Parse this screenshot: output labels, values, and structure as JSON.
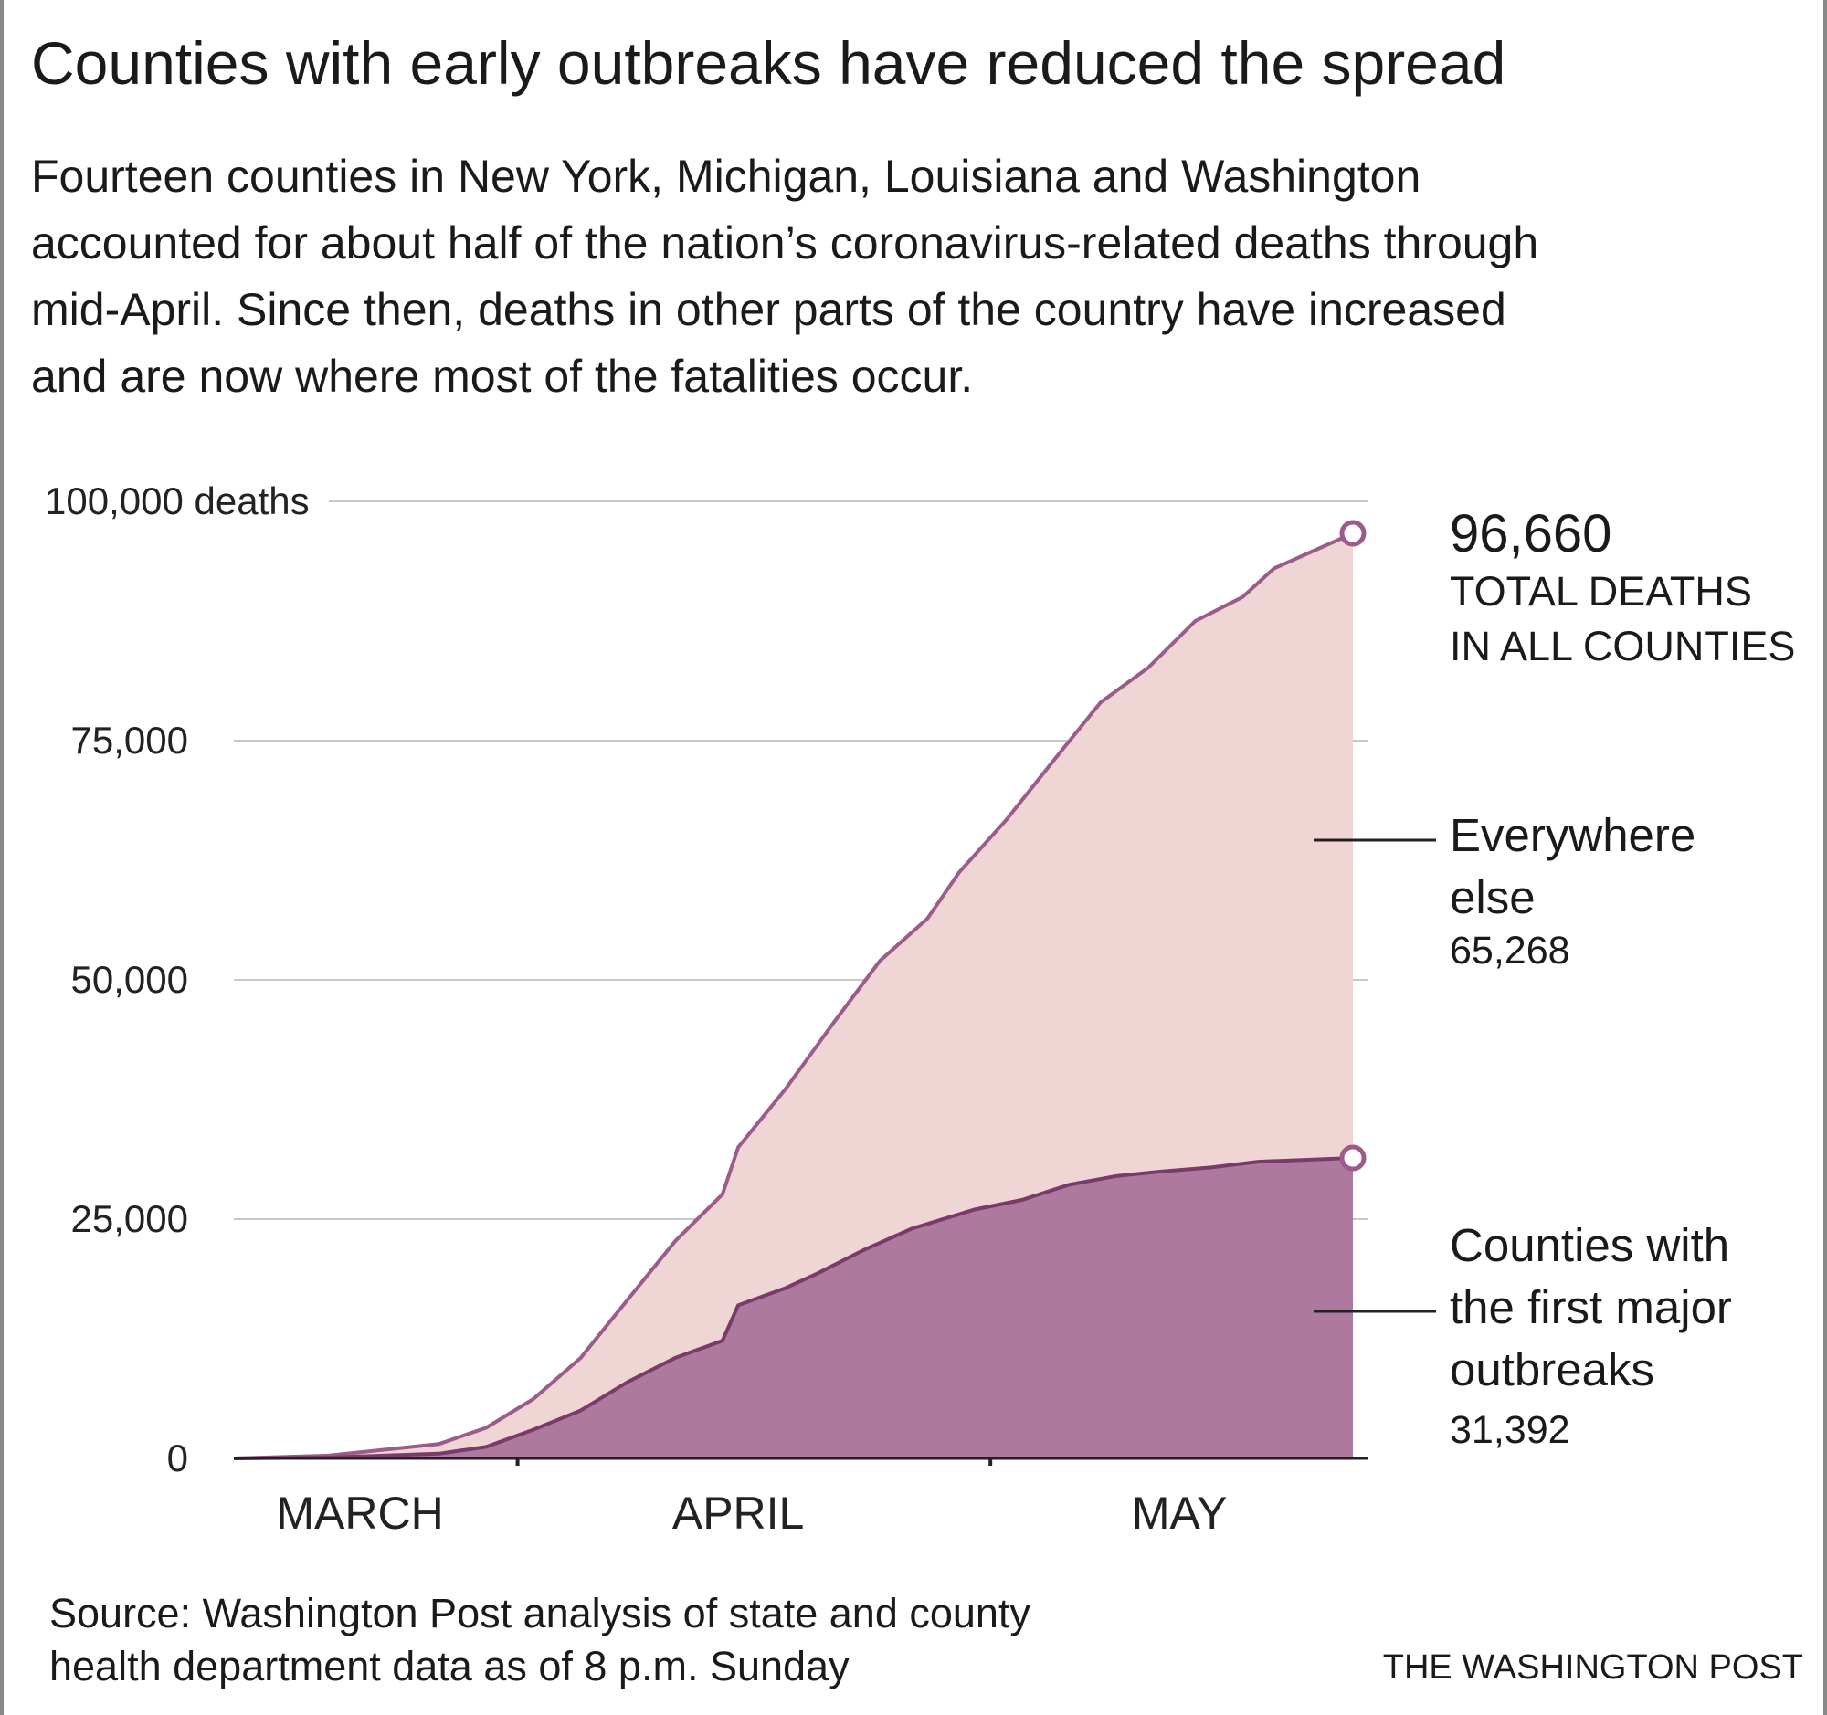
{
  "title": "Counties with early outbreaks have reduced the spread",
  "subtitle_lines": [
    "Fourteen counties in New York, Michigan, Louisiana and Washington",
    "accounted for about half of the nation’s coronavirus-related deaths through",
    "mid-April. Since then, deaths in other parts of the country have increased",
    "and are now where most of the fatalities occur."
  ],
  "source_lines": [
    "Source: Washington Post analysis of state and county",
    "health department data as of 8 p.m. Sunday"
  ],
  "credit": "THE WASHINGTON POST",
  "colors": {
    "everywhere_fill": "#efd6d4",
    "total_line": "#9c5b8b",
    "outbreak_fill": "#ad799f",
    "outbreak_line": "#7a3b6a"
  },
  "chart_data": {
    "type": "area",
    "stacked": true,
    "x_type": "date",
    "xlim": [
      "2020-03-14",
      "2020-05-24"
    ],
    "ylim": [
      0,
      100000
    ],
    "y_ticks": [
      {
        "value": 0,
        "label": "0"
      },
      {
        "value": 25000,
        "label": "25,000"
      },
      {
        "value": 50000,
        "label": "50,000"
      },
      {
        "value": 75000,
        "label": "75,000"
      },
      {
        "value": 100000,
        "label": "100,000 deaths"
      }
    ],
    "x_ticks": [
      "2020-04-01",
      "2020-05-01"
    ],
    "x_labels": [
      {
        "label": "MARCH",
        "date": "2020-03-22"
      },
      {
        "label": "APRIL",
        "date": "2020-04-15"
      },
      {
        "label": "MAY",
        "date": "2020-05-13"
      }
    ],
    "grid": true,
    "series": [
      {
        "name": "Counties with the first major outbreaks",
        "end_value": "31,392",
        "points": [
          [
            "2020-03-14",
            0
          ],
          [
            "2020-03-20",
            100
          ],
          [
            "2020-03-27",
            500
          ],
          [
            "2020-03-30",
            1200
          ],
          [
            "2020-04-02",
            3000
          ],
          [
            "2020-04-05",
            5000
          ],
          [
            "2020-04-08",
            8000
          ],
          [
            "2020-04-11",
            10500
          ],
          [
            "2020-04-14",
            12300
          ],
          [
            "2020-04-15",
            16000
          ],
          [
            "2020-04-18",
            17800
          ],
          [
            "2020-04-20",
            19300
          ],
          [
            "2020-04-23",
            21800
          ],
          [
            "2020-04-26",
            24000
          ],
          [
            "2020-04-30",
            26000
          ],
          [
            "2020-05-03",
            27000
          ],
          [
            "2020-05-06",
            28600
          ],
          [
            "2020-05-09",
            29500
          ],
          [
            "2020-05-12",
            30000
          ],
          [
            "2020-05-15",
            30400
          ],
          [
            "2020-05-18",
            31000
          ],
          [
            "2020-05-24",
            31392
          ]
        ]
      },
      {
        "name": "Everywhere else",
        "end_value": "65,268",
        "total_label": "96,660",
        "total_caption": [
          "TOTAL DEATHS",
          "IN ALL COUNTIES"
        ],
        "total_points": [
          [
            "2020-03-14",
            0
          ],
          [
            "2020-03-20",
            300
          ],
          [
            "2020-03-27",
            1500
          ],
          [
            "2020-03-30",
            3200
          ],
          [
            "2020-04-02",
            6200
          ],
          [
            "2020-04-05",
            10500
          ],
          [
            "2020-04-08",
            16600
          ],
          [
            "2020-04-11",
            22700
          ],
          [
            "2020-04-14",
            27600
          ],
          [
            "2020-04-15",
            32500
          ],
          [
            "2020-04-18",
            38600
          ],
          [
            "2020-04-21",
            45400
          ],
          [
            "2020-04-24",
            52000
          ],
          [
            "2020-04-27",
            56400
          ],
          [
            "2020-04-29",
            61200
          ],
          [
            "2020-05-02",
            66700
          ],
          [
            "2020-05-05",
            72900
          ],
          [
            "2020-05-08",
            79000
          ],
          [
            "2020-05-11",
            82600
          ],
          [
            "2020-05-14",
            87500
          ],
          [
            "2020-05-17",
            90000
          ],
          [
            "2020-05-19",
            93000
          ],
          [
            "2020-05-24",
            96660
          ]
        ]
      }
    ],
    "labels": {
      "everywhere": [
        "Everywhere",
        "else"
      ],
      "outbreak": [
        "Counties with",
        "the first major",
        "outbreaks"
      ]
    }
  }
}
